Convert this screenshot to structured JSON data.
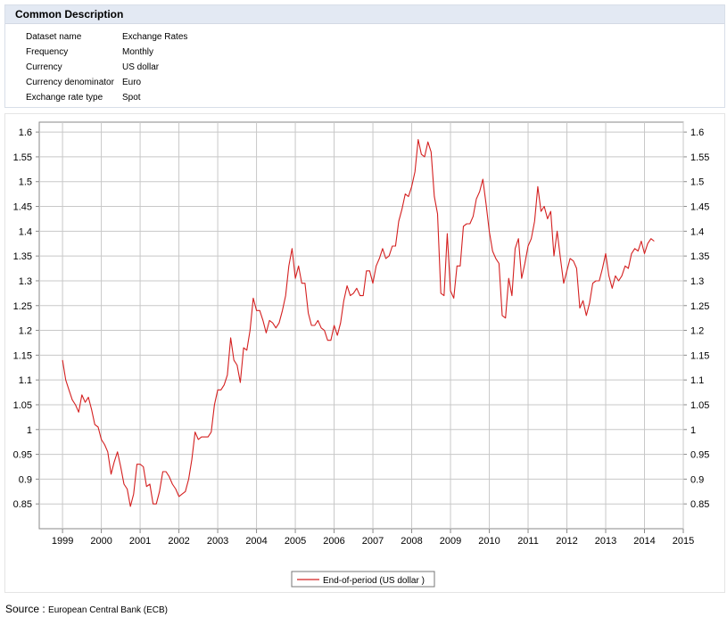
{
  "panel": {
    "title": "Common Description",
    "rows": [
      {
        "label": "Dataset name",
        "value": "Exchange Rates"
      },
      {
        "label": "Frequency",
        "value": "Monthly"
      },
      {
        "label": "Currency",
        "value": "US dollar"
      },
      {
        "label": "Currency denominator",
        "value": "Euro"
      },
      {
        "label": "Exchange rate type",
        "value": "Spot"
      }
    ]
  },
  "source": {
    "label": "Source :",
    "value": "European Central Bank (ECB)"
  },
  "colors": {
    "line": "#d42020",
    "grid": "#c8c8c8",
    "panel_header": "#e3e9f3"
  },
  "chart_data": {
    "type": "line",
    "grid": true,
    "legend_position": "bottom-center",
    "xlim": [
      1998.4,
      2015.0
    ],
    "ylim": [
      0.8,
      1.62
    ],
    "x_ticks": [
      "1999",
      "2000",
      "2001",
      "2002",
      "2003",
      "2004",
      "2005",
      "2006",
      "2007",
      "2008",
      "2009",
      "2010",
      "2011",
      "2012",
      "2013",
      "2014",
      "2015"
    ],
    "y_ticks": [
      "0.85",
      "0.9",
      "0.95",
      "1",
      "1.05",
      "1.1",
      "1.15",
      "1.2",
      "1.25",
      "1.3",
      "1.35",
      "1.4",
      "1.45",
      "1.5",
      "1.55",
      "1.6"
    ],
    "series": [
      {
        "name": "End-of-period (US dollar )",
        "start_year": 1999,
        "start_month": 1,
        "values": [
          1.14,
          1.1,
          1.08,
          1.06,
          1.05,
          1.035,
          1.07,
          1.055,
          1.065,
          1.04,
          1.01,
          1.005,
          0.98,
          0.97,
          0.955,
          0.91,
          0.935,
          0.955,
          0.925,
          0.89,
          0.88,
          0.845,
          0.87,
          0.93,
          0.93,
          0.925,
          0.885,
          0.89,
          0.85,
          0.85,
          0.875,
          0.915,
          0.915,
          0.905,
          0.89,
          0.88,
          0.865,
          0.87,
          0.875,
          0.9,
          0.94,
          0.995,
          0.98,
          0.985,
          0.985,
          0.985,
          0.995,
          1.05,
          1.08,
          1.08,
          1.09,
          1.11,
          1.185,
          1.14,
          1.13,
          1.095,
          1.165,
          1.16,
          1.2,
          1.265,
          1.24,
          1.24,
          1.22,
          1.195,
          1.22,
          1.215,
          1.205,
          1.215,
          1.24,
          1.27,
          1.33,
          1.365,
          1.305,
          1.33,
          1.295,
          1.295,
          1.235,
          1.21,
          1.21,
          1.22,
          1.205,
          1.2,
          1.18,
          1.18,
          1.21,
          1.19,
          1.215,
          1.26,
          1.29,
          1.27,
          1.275,
          1.285,
          1.27,
          1.27,
          1.32,
          1.32,
          1.295,
          1.33,
          1.345,
          1.365,
          1.345,
          1.35,
          1.37,
          1.37,
          1.42,
          1.445,
          1.475,
          1.47,
          1.49,
          1.52,
          1.585,
          1.555,
          1.55,
          1.58,
          1.56,
          1.47,
          1.435,
          1.275,
          1.27,
          1.395,
          1.28,
          1.265,
          1.33,
          1.33,
          1.41,
          1.415,
          1.415,
          1.43,
          1.465,
          1.48,
          1.505,
          1.455,
          1.4,
          1.36,
          1.345,
          1.335,
          1.23,
          1.225,
          1.305,
          1.27,
          1.365,
          1.385,
          1.305,
          1.335,
          1.37,
          1.385,
          1.42,
          1.49,
          1.44,
          1.45,
          1.425,
          1.44,
          1.35,
          1.4,
          1.345,
          1.295,
          1.32,
          1.345,
          1.34,
          1.325,
          1.245,
          1.26,
          1.23,
          1.255,
          1.295,
          1.3,
          1.3,
          1.325,
          1.355,
          1.31,
          1.285,
          1.31,
          1.3,
          1.31,
          1.33,
          1.325,
          1.355,
          1.365,
          1.36,
          1.38,
          1.355,
          1.375,
          1.385,
          1.38
        ]
      }
    ]
  }
}
